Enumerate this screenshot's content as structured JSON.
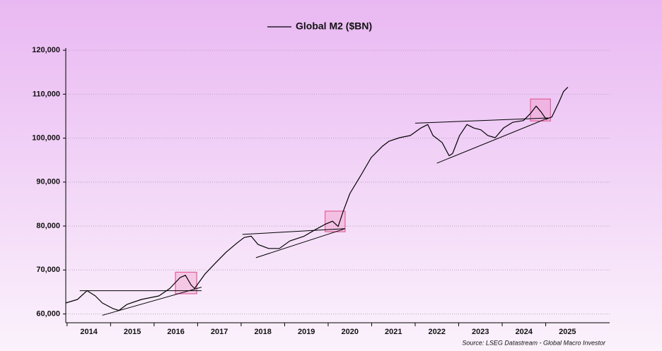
{
  "chart_data": {
    "type": "line",
    "series": [
      {
        "name": "Global M2 ($BN)",
        "color": "#000000",
        "x": [
          2013.97,
          2014.24,
          2014.46,
          2014.65,
          2014.81,
          2015.06,
          2015.19,
          2015.38,
          2015.71,
          2016.11,
          2016.36,
          2016.6,
          2016.72,
          2016.85,
          2016.93,
          2017.17,
          2017.41,
          2017.66,
          2017.9,
          2018.07,
          2018.23,
          2018.39,
          2018.63,
          2018.88,
          2019.12,
          2019.45,
          2019.69,
          2019.93,
          2020.1,
          2020.23,
          2020.34,
          2020.5,
          2020.75,
          2020.99,
          2021.24,
          2021.4,
          2021.64,
          2021.89,
          2022.13,
          2022.29,
          2022.41,
          2022.62,
          2022.78,
          2022.86,
          2023.02,
          2023.19,
          2023.35,
          2023.51,
          2023.67,
          2023.84,
          2024.03,
          2024.24,
          2024.49,
          2024.65,
          2024.78,
          2024.89,
          2025.01,
          2025.14,
          2025.3,
          2025.41,
          2025.51
        ],
        "values": [
          62500,
          63300,
          65300,
          64100,
          62500,
          61200,
          60800,
          62200,
          63300,
          64100,
          65800,
          68300,
          68800,
          66600,
          65800,
          69100,
          71600,
          74100,
          76100,
          77400,
          77700,
          75800,
          74900,
          74900,
          76600,
          77700,
          79100,
          80400,
          81100,
          79900,
          83200,
          87400,
          91500,
          95600,
          98100,
          99300,
          100100,
          100600,
          102300,
          103100,
          100600,
          99000,
          96000,
          96500,
          100600,
          103100,
          102300,
          101900,
          100600,
          100100,
          102300,
          103600,
          104000,
          105600,
          107300,
          106000,
          104300,
          104800,
          108100,
          110600,
          111600
        ]
      }
    ],
    "trendlines": [
      {
        "x": [
          2014.29,
          2017.09
        ],
        "y": [
          65300,
          65300
        ]
      },
      {
        "x": [
          2014.81,
          2017.09
        ],
        "y": [
          59700,
          66100
        ]
      },
      {
        "x": [
          2018.03,
          2020.39
        ],
        "y": [
          78100,
          79400
        ]
      },
      {
        "x": [
          2018.34,
          2020.39
        ],
        "y": [
          72800,
          79400
        ]
      },
      {
        "x": [
          2022.0,
          2025.06
        ],
        "y": [
          103400,
          104600
        ]
      },
      {
        "x": [
          2022.5,
          2025.06
        ],
        "y": [
          94300,
          104600
        ]
      }
    ],
    "boxes": [
      {
        "x": [
          2016.49,
          2016.98
        ],
        "y": [
          64600,
          69500
        ]
      },
      {
        "x": [
          2019.93,
          2020.39
        ],
        "y": [
          78700,
          83400
        ]
      },
      {
        "x": [
          2024.65,
          2025.11
        ],
        "y": [
          103900,
          108900
        ]
      }
    ],
    "xlim": [
      2013.97,
      2026.47
    ],
    "xticks": [
      2014,
      2015,
      2016,
      2017,
      2018,
      2019,
      2020,
      2021,
      2022,
      2023,
      2024,
      2025
    ],
    "ylim": [
      58000,
      120500
    ],
    "yticks": [
      {
        "value": 60000,
        "label": "60,000"
      },
      {
        "value": 70000,
        "label": "70,000"
      },
      {
        "value": 80000,
        "label": "80,000"
      },
      {
        "value": 90000,
        "label": "90,000"
      },
      {
        "value": 100000,
        "label": "100,000"
      },
      {
        "value": 110000,
        "label": "110,000"
      },
      {
        "value": 120000,
        "label": "120,000"
      }
    ],
    "grid": true,
    "source": "Source: LSEG Datastream - Global Macro Investor"
  }
}
